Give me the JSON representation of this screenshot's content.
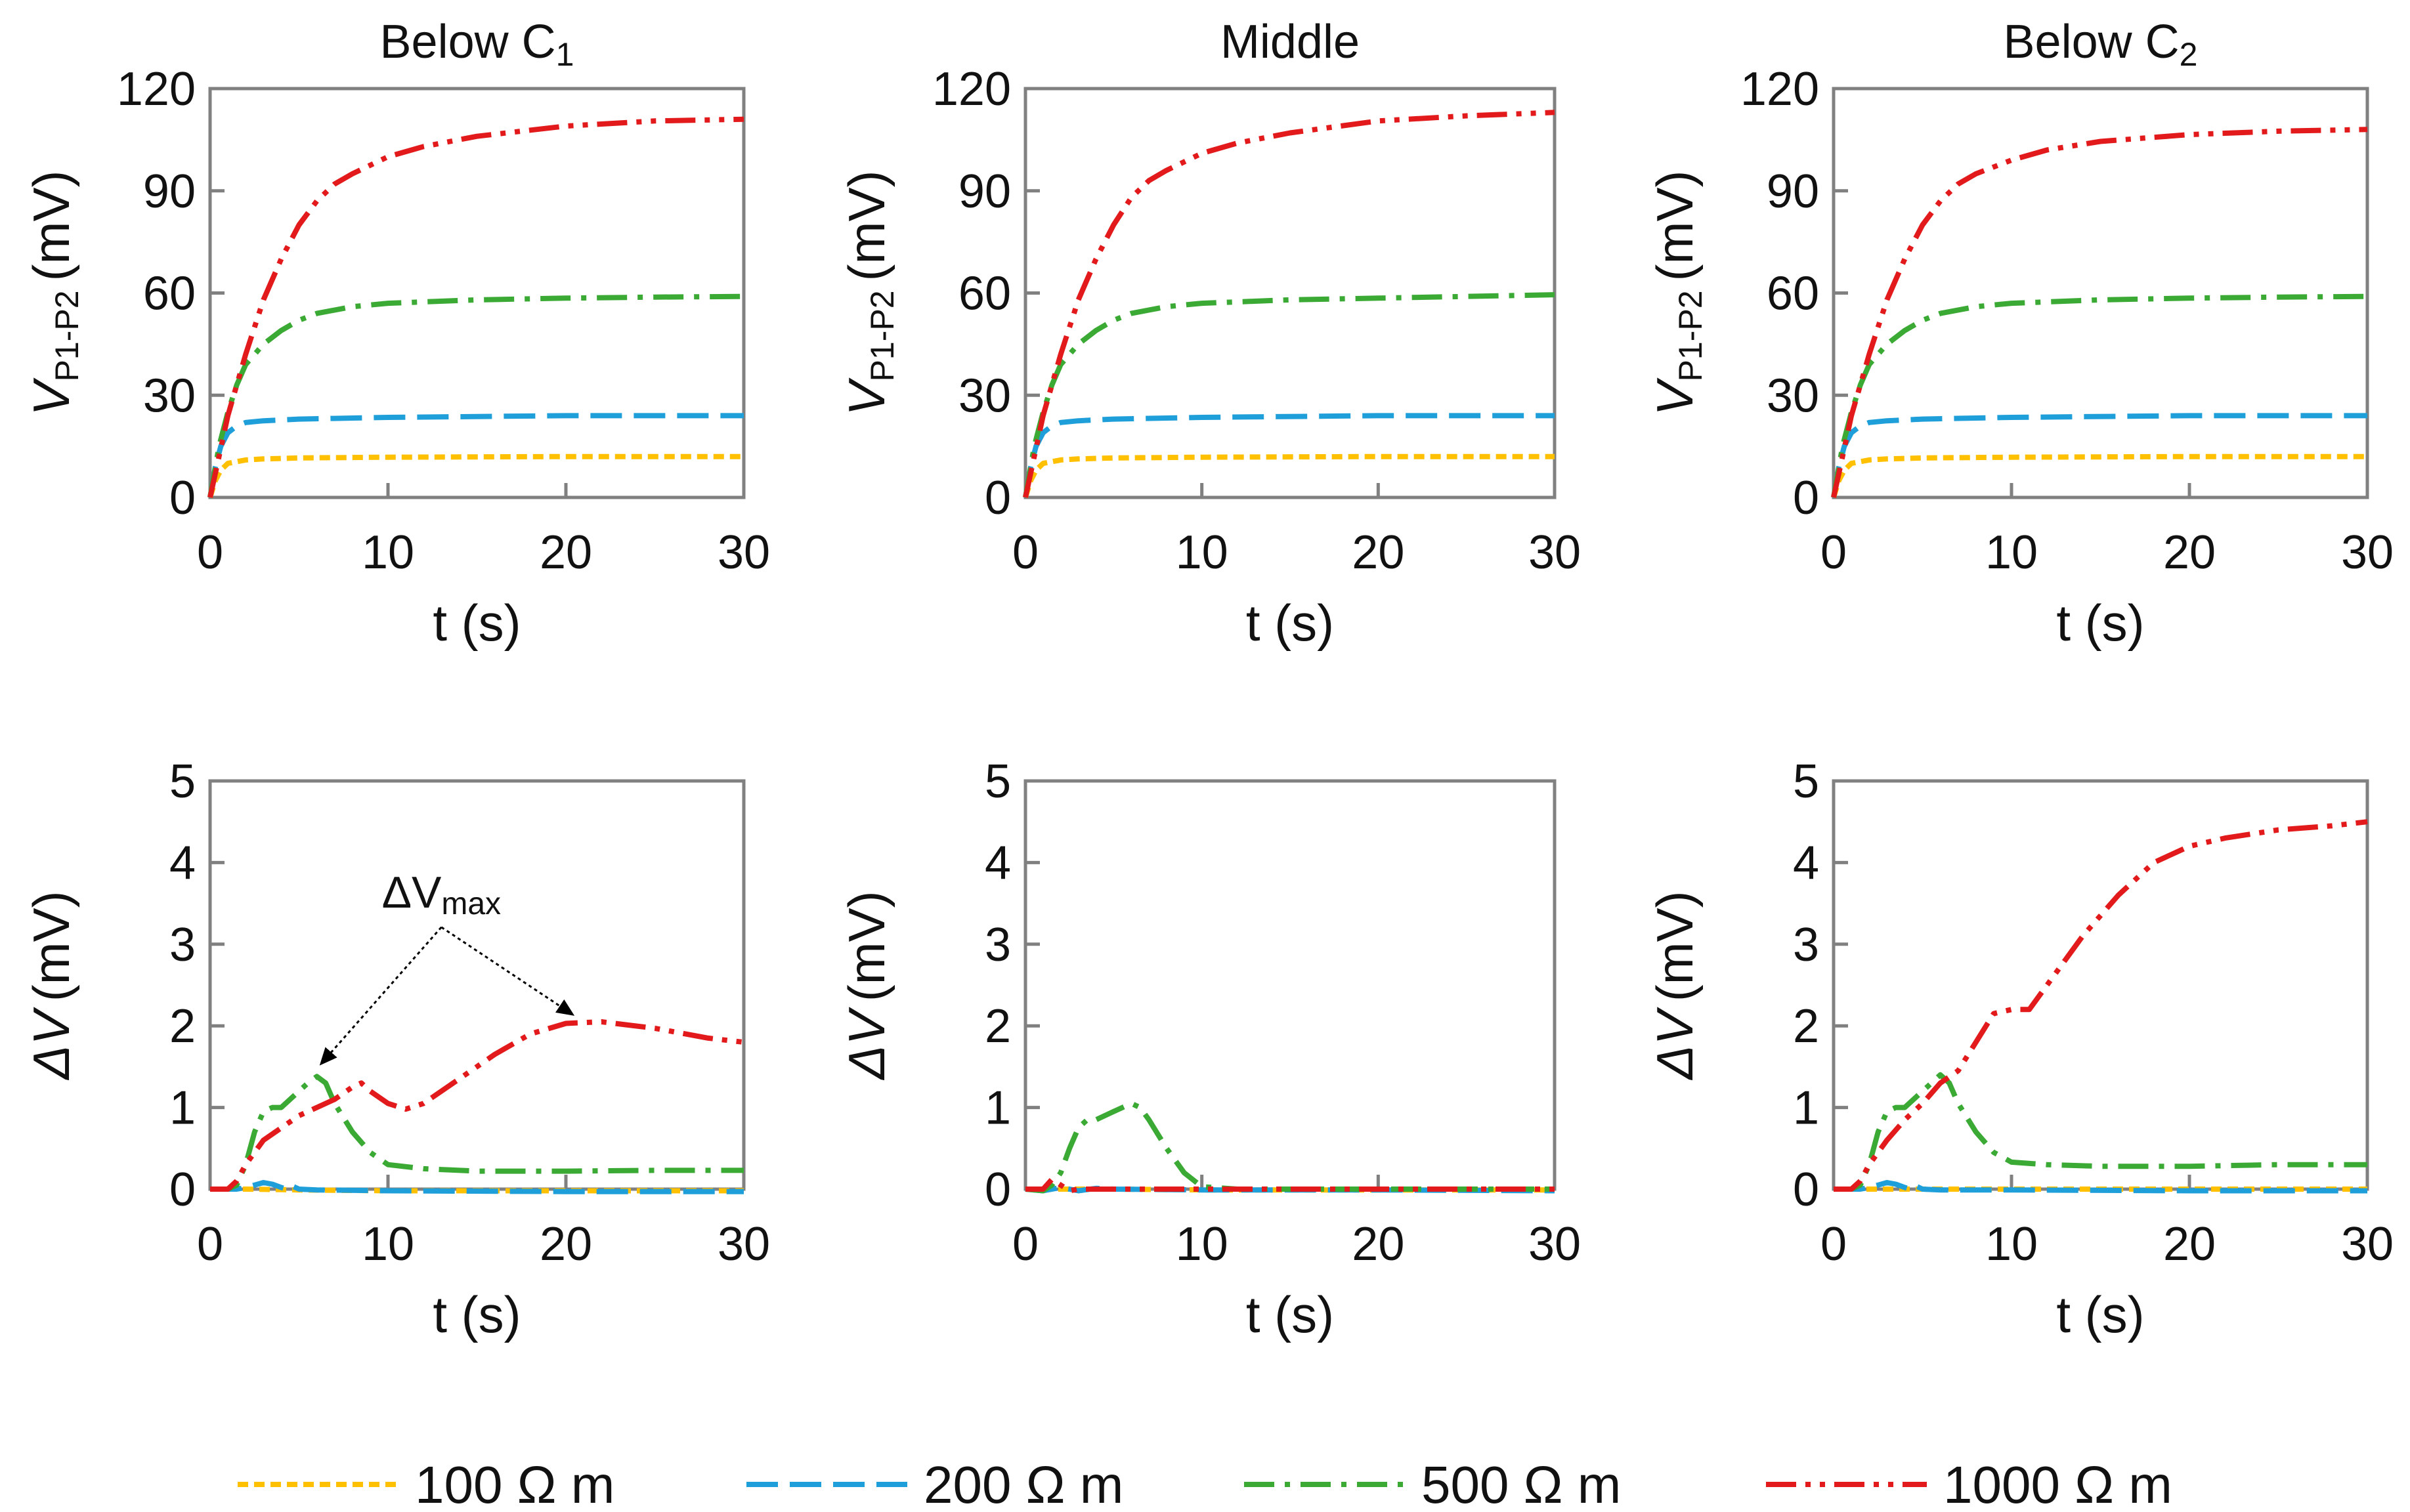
{
  "figure": {
    "legend": [
      {
        "label": "100 Ω m",
        "color": "#FFC000",
        "dash": "short-dash"
      },
      {
        "label": "200 Ω m",
        "color": "#1F9FD9",
        "dash": "long-dash"
      },
      {
        "label": "500 Ω m",
        "color": "#3BAA35",
        "dash": "dash-dot"
      },
      {
        "label": "1000 Ω m",
        "color": "#E31A1C",
        "dash": "dash-dot-dot"
      }
    ]
  },
  "chart_data": [
    {
      "type": "line",
      "row": "top",
      "column": "left",
      "title": "Below C",
      "title_sub": "1",
      "xlabel": "t (s)",
      "ylabel": "V",
      "ylabel_sub": "P1-P2",
      "ylabel_unit": "(mV)",
      "xlim": [
        0,
        30
      ],
      "ylim": [
        0,
        120
      ],
      "xticks": [
        0,
        10,
        20,
        30
      ],
      "yticks": [
        0,
        30,
        60,
        90,
        120
      ],
      "series": [
        {
          "name": "100 Ω m",
          "x": [
            0,
            0.3,
            0.6,
            1,
            1.5,
            2,
            3,
            5,
            10,
            20,
            30
          ],
          "y": [
            0,
            5,
            8,
            10,
            10.5,
            11,
            11.3,
            11.6,
            11.8,
            12,
            12
          ]
        },
        {
          "name": "200 Ω m",
          "x": [
            0,
            0.3,
            0.6,
            1,
            1.5,
            2,
            3,
            5,
            10,
            20,
            30
          ],
          "y": [
            0,
            9,
            15,
            19,
            21,
            22,
            22.5,
            23,
            23.5,
            24,
            24
          ]
        },
        {
          "name": "500 Ω m",
          "x": [
            0,
            0.5,
            1,
            1.5,
            2,
            3,
            4,
            5,
            6,
            8,
            10,
            15,
            20,
            25,
            30
          ],
          "y": [
            0,
            15,
            25,
            33,
            39,
            45,
            49,
            52,
            54,
            56,
            57,
            58,
            58.5,
            58.8,
            59
          ]
        },
        {
          "name": "1000 Ω m",
          "x": [
            0,
            0.5,
            1,
            1.5,
            2,
            3,
            4,
            5,
            6,
            7,
            8,
            10,
            12,
            15,
            20,
            25,
            30
          ],
          "y": [
            0,
            12,
            24,
            33,
            42,
            58,
            70,
            80,
            87,
            92,
            95,
            100,
            103,
            106,
            109,
            110.5,
            111
          ]
        }
      ]
    },
    {
      "type": "line",
      "row": "top",
      "column": "middle",
      "title": "Middle",
      "title_sub": "",
      "xlabel": "t (s)",
      "ylabel": "V",
      "ylabel_sub": "P1-P2",
      "ylabel_unit": "(mV)",
      "xlim": [
        0,
        30
      ],
      "ylim": [
        0,
        120
      ],
      "xticks": [
        0,
        10,
        20,
        30
      ],
      "yticks": [
        0,
        30,
        60,
        90,
        120
      ],
      "series": [
        {
          "name": "100 Ω m",
          "x": [
            0,
            0.3,
            0.6,
            1,
            1.5,
            2,
            3,
            5,
            10,
            20,
            30
          ],
          "y": [
            0,
            5,
            8,
            10,
            10.5,
            11,
            11.3,
            11.6,
            11.8,
            12,
            12
          ]
        },
        {
          "name": "200 Ω m",
          "x": [
            0,
            0.3,
            0.6,
            1,
            1.5,
            2,
            3,
            5,
            10,
            20,
            30
          ],
          "y": [
            0,
            9,
            15,
            19,
            21,
            22,
            22.5,
            23,
            23.5,
            24,
            24
          ]
        },
        {
          "name": "500 Ω m",
          "x": [
            0,
            0.5,
            1,
            1.5,
            2,
            3,
            4,
            5,
            6,
            8,
            10,
            15,
            20,
            25,
            30
          ],
          "y": [
            0,
            15,
            25,
            33,
            39,
            45,
            49,
            52,
            54,
            56,
            57,
            58,
            58.5,
            59,
            59.5
          ]
        },
        {
          "name": "1000 Ω m",
          "x": [
            0,
            0.5,
            1,
            1.5,
            2,
            3,
            4,
            5,
            6,
            7,
            8,
            10,
            12,
            15,
            20,
            25,
            30
          ],
          "y": [
            0,
            12,
            24,
            33,
            42,
            58,
            70,
            80,
            88,
            93,
            96,
            101,
            104,
            107,
            110.5,
            112,
            113
          ]
        }
      ]
    },
    {
      "type": "line",
      "row": "top",
      "column": "right",
      "title": "Below C",
      "title_sub": "2",
      "xlabel": "t (s)",
      "ylabel": "V",
      "ylabel_sub": "P1-P2",
      "ylabel_unit": "(mV)",
      "xlim": [
        0,
        30
      ],
      "ylim": [
        0,
        120
      ],
      "xticks": [
        0,
        10,
        20,
        30
      ],
      "yticks": [
        0,
        30,
        60,
        90,
        120
      ],
      "series": [
        {
          "name": "100 Ω m",
          "x": [
            0,
            0.3,
            0.6,
            1,
            1.5,
            2,
            3,
            5,
            10,
            20,
            30
          ],
          "y": [
            0,
            5,
            8,
            10,
            10.5,
            11,
            11.3,
            11.6,
            11.8,
            12,
            12
          ]
        },
        {
          "name": "200 Ω m",
          "x": [
            0,
            0.3,
            0.6,
            1,
            1.5,
            2,
            3,
            5,
            10,
            20,
            30
          ],
          "y": [
            0,
            9,
            15,
            19,
            21,
            22,
            22.5,
            23,
            23.5,
            24,
            24
          ]
        },
        {
          "name": "500 Ω m",
          "x": [
            0,
            0.5,
            1,
            1.5,
            2,
            3,
            4,
            5,
            6,
            8,
            10,
            15,
            20,
            25,
            30
          ],
          "y": [
            0,
            15,
            25,
            33,
            39,
            45,
            49,
            52,
            54,
            56,
            57,
            58,
            58.5,
            58.8,
            59
          ]
        },
        {
          "name": "1000 Ω m",
          "x": [
            0,
            0.5,
            1,
            1.5,
            2,
            3,
            4,
            5,
            6,
            7,
            8,
            10,
            12,
            15,
            20,
            25,
            30
          ],
          "y": [
            0,
            12,
            24,
            33,
            42,
            58,
            70,
            80,
            87,
            92,
            95,
            99,
            102,
            104.5,
            106.5,
            107.5,
            108
          ]
        }
      ]
    },
    {
      "type": "line",
      "row": "bottom",
      "column": "left",
      "title": "",
      "title_sub": "",
      "xlabel": "t (s)",
      "ylabel": "ΔV",
      "ylabel_sub": "",
      "ylabel_unit": "(mV)",
      "xlim": [
        0,
        30
      ],
      "ylim": [
        0,
        5
      ],
      "xticks": [
        0,
        10,
        20,
        30
      ],
      "yticks": [
        0,
        1,
        2,
        3,
        4,
        5
      ],
      "annotation": {
        "text": "ΔV",
        "sub": "max",
        "x": 13,
        "y": 3.45,
        "targets": [
          {
            "x": 6.3,
            "y": 1.55
          },
          {
            "x": 20.3,
            "y": 2.15
          }
        ]
      },
      "series": [
        {
          "name": "100 Ω m",
          "x": [
            0,
            2,
            5,
            10,
            20,
            30
          ],
          "y": [
            0,
            0,
            -0.01,
            -0.02,
            -0.02,
            -0.02
          ]
        },
        {
          "name": "200 Ω m",
          "x": [
            0,
            1.5,
            2,
            2.5,
            3,
            3.5,
            4,
            4.3,
            4.6,
            5,
            6,
            10,
            20,
            30
          ],
          "y": [
            0,
            0,
            0.02,
            0.05,
            0.08,
            0.06,
            0.02,
            0.0,
            0.04,
            0.0,
            -0.01,
            -0.02,
            -0.03,
            -0.03
          ]
        },
        {
          "name": "500 Ω m",
          "x": [
            0,
            1,
            1.5,
            2,
            2.5,
            3,
            3.5,
            4,
            5,
            5.5,
            6,
            6.5,
            7,
            8,
            9,
            10,
            12,
            15,
            20,
            25,
            30
          ],
          "y": [
            0,
            0,
            0.05,
            0.3,
            0.7,
            0.95,
            1.0,
            1.0,
            1.2,
            1.3,
            1.38,
            1.3,
            1.05,
            0.7,
            0.45,
            0.3,
            0.25,
            0.22,
            0.22,
            0.23,
            0.23
          ]
        },
        {
          "name": "1000 Ω m",
          "x": [
            0,
            1,
            1.5,
            2,
            3,
            4,
            5,
            6,
            7,
            8,
            8.5,
            9,
            10,
            11,
            12,
            14,
            16,
            18,
            20,
            22,
            25,
            28,
            30
          ],
          "y": [
            0,
            0,
            0.1,
            0.3,
            0.6,
            0.75,
            0.9,
            1.0,
            1.1,
            1.25,
            1.3,
            1.2,
            1.05,
            0.98,
            1.05,
            1.35,
            1.65,
            1.9,
            2.03,
            2.05,
            1.97,
            1.85,
            1.8
          ]
        }
      ]
    },
    {
      "type": "line",
      "row": "bottom",
      "column": "middle",
      "title": "",
      "title_sub": "",
      "xlabel": "t (s)",
      "ylabel": "ΔV",
      "ylabel_sub": "",
      "ylabel_unit": "(mV)",
      "xlim": [
        0,
        30
      ],
      "ylim": [
        0,
        5
      ],
      "xticks": [
        0,
        10,
        20,
        30
      ],
      "yticks": [
        0,
        1,
        2,
        3,
        4,
        5
      ],
      "series": [
        {
          "name": "100 Ω m",
          "x": [
            0,
            2,
            5,
            10,
            20,
            30
          ],
          "y": [
            0,
            0,
            0,
            -0.01,
            -0.01,
            -0.01
          ]
        },
        {
          "name": "200 Ω m",
          "x": [
            0,
            1,
            2,
            3,
            4,
            5,
            10,
            20,
            30
          ],
          "y": [
            0,
            -0.02,
            0.02,
            -0.02,
            0.01,
            0,
            -0.01,
            -0.01,
            -0.02
          ]
        },
        {
          "name": "500 Ω m",
          "x": [
            0,
            1,
            1.5,
            2,
            2.5,
            3,
            3.5,
            4,
            5,
            5.5,
            6,
            6.5,
            7,
            8,
            9,
            10,
            12,
            20,
            30
          ],
          "y": [
            0,
            -0.02,
            0.05,
            0.2,
            0.5,
            0.75,
            0.85,
            0.85,
            0.95,
            1.0,
            1.05,
            1.0,
            0.85,
            0.5,
            0.2,
            0.03,
            0,
            0,
            0
          ]
        },
        {
          "name": "1000 Ω m",
          "x": [
            0,
            1,
            1.5,
            2,
            2.5,
            3,
            4,
            5,
            10,
            20,
            30
          ],
          "y": [
            0,
            0,
            0.12,
            0.05,
            -0.02,
            0,
            0,
            0,
            0,
            0,
            0
          ]
        }
      ]
    },
    {
      "type": "line",
      "row": "bottom",
      "column": "right",
      "title": "",
      "title_sub": "",
      "xlabel": "t (s)",
      "ylabel": "ΔV",
      "ylabel_sub": "",
      "ylabel_unit": "(mV)",
      "xlim": [
        0,
        30
      ],
      "ylim": [
        0,
        5
      ],
      "xticks": [
        0,
        10,
        20,
        30
      ],
      "yticks": [
        0,
        1,
        2,
        3,
        4,
        5
      ],
      "series": [
        {
          "name": "100 Ω m",
          "x": [
            0,
            2,
            5,
            10,
            20,
            30
          ],
          "y": [
            0,
            0,
            0,
            0,
            0,
            0
          ]
        },
        {
          "name": "200 Ω m",
          "x": [
            0,
            1.5,
            2,
            2.5,
            3,
            3.5,
            4,
            4.3,
            4.6,
            5,
            6,
            10,
            20,
            30
          ],
          "y": [
            0,
            0,
            0.02,
            0.05,
            0.08,
            0.06,
            0.02,
            0.0,
            0.04,
            0.0,
            -0.01,
            -0.01,
            -0.02,
            -0.02
          ]
        },
        {
          "name": "500 Ω m",
          "x": [
            0,
            1,
            1.5,
            2,
            2.5,
            3,
            3.5,
            4,
            5,
            5.5,
            6,
            6.5,
            7,
            8,
            9,
            10,
            12,
            15,
            20,
            25,
            30
          ],
          "y": [
            0,
            0,
            0.05,
            0.3,
            0.7,
            0.95,
            1.0,
            1.0,
            1.2,
            1.3,
            1.4,
            1.3,
            1.05,
            0.7,
            0.45,
            0.33,
            0.3,
            0.28,
            0.28,
            0.3,
            0.3
          ]
        },
        {
          "name": "1000 Ω m",
          "x": [
            0,
            1,
            1.5,
            2,
            3,
            4,
            5,
            6,
            7,
            8,
            9,
            10,
            11,
            12,
            14,
            16,
            18,
            20,
            22,
            25,
            28,
            30
          ],
          "y": [
            0,
            0,
            0.1,
            0.3,
            0.6,
            0.85,
            1.05,
            1.3,
            1.45,
            1.8,
            2.15,
            2.2,
            2.2,
            2.5,
            3.1,
            3.6,
            4.0,
            4.2,
            4.3,
            4.4,
            4.45,
            4.5
          ]
        }
      ]
    }
  ]
}
